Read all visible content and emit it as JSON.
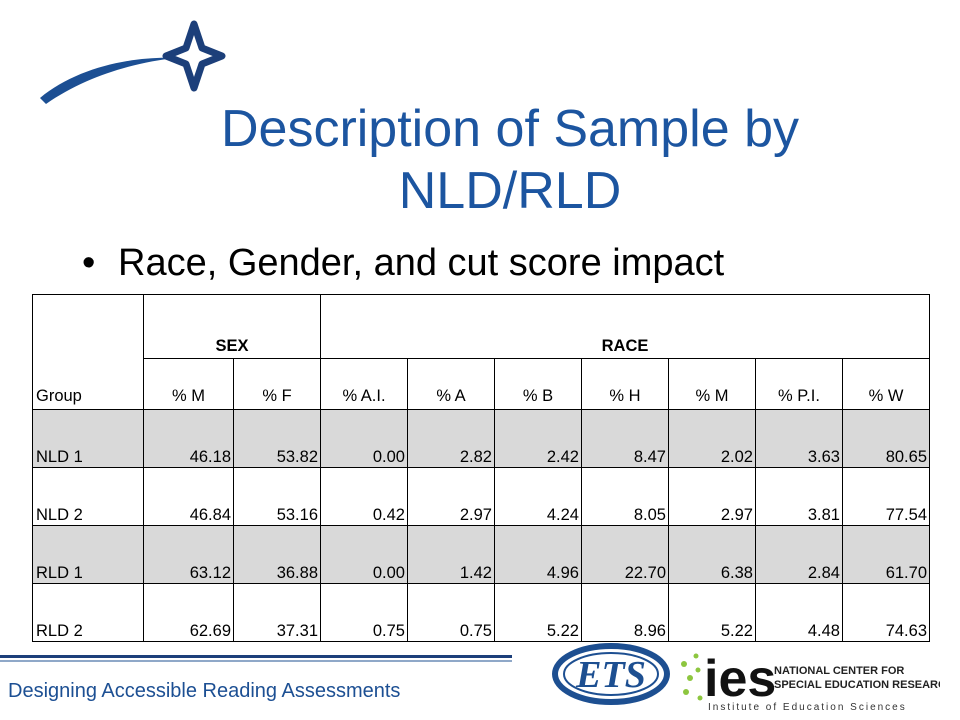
{
  "slide": {
    "title_line1": "Description of Sample by",
    "title_line2": "NLD/RLD",
    "bullet": "Race, Gender, and cut score impact",
    "bullet_symbol": "•",
    "footer": "Designing Accessible Reading Assessments"
  },
  "table": {
    "group_header": "Group",
    "sex_header": "SEX",
    "race_header": "RACE",
    "columns": [
      "% M",
      "% F",
      "% A.I.",
      "% A",
      "% B",
      "% H",
      "% M",
      "% P.I.",
      "% W"
    ],
    "rows": [
      {
        "label": "NLD 1",
        "values": [
          "46.18",
          "53.82",
          "0.00",
          "2.82",
          "2.42",
          "8.47",
          "2.02",
          "3.63",
          "80.65"
        ]
      },
      {
        "label": "NLD 2",
        "values": [
          "46.84",
          "53.16",
          "0.42",
          "2.97",
          "4.24",
          "8.05",
          "2.97",
          "3.81",
          "77.54"
        ]
      },
      {
        "label": "RLD 1",
        "values": [
          "63.12",
          "36.88",
          "0.00",
          "1.42",
          "4.96",
          "22.70",
          "6.38",
          "2.84",
          "61.70"
        ]
      },
      {
        "label": "RLD 2",
        "values": [
          "62.69",
          "37.31",
          "0.75",
          "0.75",
          "5.22",
          "8.96",
          "5.22",
          "4.48",
          "74.63"
        ]
      }
    ]
  },
  "logos": {
    "ets": "ETS",
    "ies": "ies",
    "ies_line1": "NATIONAL CENTER FOR",
    "ies_line2": "SPECIAL EDUCATION RESEARCH",
    "ies_tagline": "Institute of Education Sciences"
  },
  "colors": {
    "title": "#1c55a0",
    "footer_text": "#1c4f93",
    "row_shade": "#d9d9d9",
    "ets_blue": "#1d4f91",
    "ies_green": "#8dc63f"
  }
}
